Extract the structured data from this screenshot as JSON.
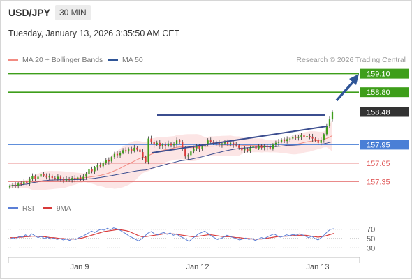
{
  "header": {
    "symbol": "USD/JPY",
    "interval": "30 MIN",
    "datetime": "Tuesday, January 13, 2026 3:35:50 AM CET"
  },
  "legend": {
    "items": [
      {
        "label": "MA 20 + Bollinger Bands",
        "color": "#f28b82"
      },
      {
        "label": "MA 50",
        "color": "#2f5597"
      }
    ],
    "credit": "Research © 2026 Trading Central"
  },
  "colors": {
    "target": "#3e9e1a",
    "pivot": "#4a7fd6",
    "support": "#e05a5a",
    "last": "#333333",
    "arrow": "#2f5597",
    "triangle": "#3b4d8f",
    "bull": "#3e9e1a",
    "bear": "#d83a3a",
    "band": "#fbdada",
    "rsi": "#5b7fd6",
    "rsi_ma": "#d83a3a"
  },
  "chart_data": [
    {
      "type": "candlestick",
      "ylim": [
        157.13,
        159.22
      ],
      "x_ticks": [
        "Jan 9",
        "Jan 12",
        "Jan 13"
      ],
      "price_levels": [
        {
          "role": "resistance",
          "value": 159.1,
          "label": "159.10"
        },
        {
          "role": "resistance",
          "value": 158.8,
          "label": "158.80"
        },
        {
          "role": "last",
          "value": 158.48,
          "label": "158.48"
        },
        {
          "role": "pivot",
          "value": 157.95,
          "label": "157.95"
        },
        {
          "role": "support",
          "value": 157.65,
          "label": "157.65"
        },
        {
          "role": "support",
          "value": 157.35,
          "label": "157.35"
        }
      ],
      "close": [
        157.28,
        157.3,
        157.29,
        157.32,
        157.31,
        157.35,
        157.33,
        157.39,
        157.44,
        157.4,
        157.43,
        157.48,
        157.45,
        157.42,
        157.44,
        157.41,
        157.4,
        157.43,
        157.39,
        157.37,
        157.4,
        157.38,
        157.41,
        157.39,
        157.42,
        157.4,
        157.43,
        157.48,
        157.55,
        157.52,
        157.58,
        157.62,
        157.6,
        157.66,
        157.7,
        157.68,
        157.75,
        157.8,
        157.78,
        157.82,
        157.86,
        157.84,
        157.88,
        157.85,
        157.9,
        157.87,
        157.83,
        157.75,
        157.67,
        158.05,
        158.0,
        157.95,
        157.98,
        157.92,
        157.95,
        157.93,
        157.97,
        157.94,
        157.96,
        158.02,
        157.99,
        157.88,
        157.76,
        157.78,
        157.84,
        157.89,
        157.93,
        157.88,
        157.92,
        157.96,
        158.02,
        158.0,
        157.97,
        157.98,
        157.95,
        157.97,
        157.99,
        157.96,
        157.98,
        157.95,
        157.94,
        157.9,
        157.86,
        157.88,
        157.85,
        157.9,
        157.93,
        157.89,
        157.92,
        157.9,
        157.93,
        157.91,
        157.89,
        157.95,
        157.98,
        158.0,
        158.03,
        158.01,
        158.04,
        158.05,
        158.07,
        158.06,
        158.08,
        158.1,
        158.07,
        158.09,
        158.08,
        158.05,
        158.02,
        157.98,
        158.03,
        158.12,
        158.25,
        158.36,
        158.48
      ]
    },
    {
      "type": "line",
      "title": "",
      "ylim": [
        20,
        80
      ],
      "y_ticks": [
        30,
        50,
        70
      ],
      "series": [
        {
          "name": "RSI",
          "values": [
            48,
            52,
            49,
            55,
            53,
            58,
            54,
            60,
            56,
            52,
            55,
            50,
            53,
            49,
            51,
            48,
            50,
            47,
            49,
            46,
            50,
            48,
            52,
            54,
            58,
            62,
            66,
            63,
            67,
            70,
            68,
            72,
            69,
            73,
            71,
            68,
            64,
            60,
            55,
            52,
            48,
            45,
            50,
            56,
            62,
            65,
            60,
            58,
            61,
            63,
            59,
            62,
            57,
            60,
            55,
            52,
            48,
            44,
            50,
            55,
            60,
            63,
            66,
            61,
            56,
            52,
            48,
            50,
            53,
            57,
            55,
            52,
            50,
            47,
            49,
            51,
            48,
            50,
            46,
            49,
            52,
            50,
            54,
            57,
            60,
            56,
            53,
            55,
            58,
            56,
            59,
            57,
            60,
            58,
            55,
            52,
            55,
            50,
            47,
            52,
            58,
            65,
            70,
            71
          ]
        },
        {
          "name": "9MA",
          "values": [
            52,
            52,
            52,
            53,
            53,
            54,
            54,
            55,
            55,
            55,
            54,
            54,
            53,
            52,
            52,
            51,
            50,
            50,
            49,
            49,
            49,
            49,
            50,
            51,
            53,
            55,
            57,
            59,
            61,
            63,
            65,
            66,
            67,
            68,
            69,
            69,
            68,
            67,
            65,
            62,
            59,
            56,
            54,
            54,
            55,
            56,
            57,
            58,
            59,
            60,
            60,
            60,
            60,
            59,
            58,
            57,
            56,
            55,
            54,
            54,
            55,
            56,
            57,
            58,
            58,
            57,
            56,
            55,
            54,
            54,
            54,
            53,
            52,
            52,
            51,
            50,
            50,
            49,
            49,
            49,
            49,
            50,
            51,
            52,
            53,
            54,
            55,
            55,
            55,
            56,
            56,
            57,
            57,
            57,
            57,
            56,
            55,
            54,
            53,
            54,
            55,
            57,
            59,
            61
          ]
        }
      ]
    }
  ]
}
